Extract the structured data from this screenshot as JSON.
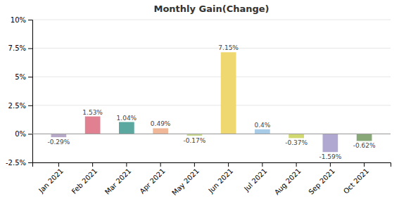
{
  "chart_data": {
    "type": "bar",
    "title": "Monthly Gain(Change)",
    "categories": [
      "Jan 2021",
      "Feb 2021",
      "Mar 2021",
      "Apr 2021",
      "May 2021",
      "Jun 2021",
      "Jul 2021",
      "Aug 2021",
      "Sep 2021",
      "Oct 2021"
    ],
    "values": [
      -0.29,
      1.53,
      1.04,
      0.49,
      -0.17,
      7.15,
      0.4,
      -0.37,
      -1.59,
      -0.62
    ],
    "value_labels": [
      "-0.29%",
      "1.53%",
      "1.04%",
      "0.49%",
      "-0.17%",
      "7.15%",
      "0.4%",
      "-0.37%",
      "-1.59%",
      "-0.62%"
    ],
    "colors": [
      "#b8a9c9",
      "#e08090",
      "#5ba8a0",
      "#f0b898",
      "#c8d890",
      "#f0d870",
      "#a8cce8",
      "#d0d870",
      "#b0a8d0",
      "#88a878"
    ],
    "ylim": [
      -2.5,
      10.0
    ],
    "yticks": [
      {
        "value": -2.5,
        "label": "-2.5%"
      },
      {
        "value": 0.0,
        "label": "0%"
      },
      {
        "value": 2.5,
        "label": "2.5%"
      },
      {
        "value": 5.0,
        "label": "5%"
      },
      {
        "value": 7.5,
        "label": "7.5%"
      },
      {
        "value": 10.0,
        "label": "10%"
      }
    ],
    "grid": true,
    "data_labels": true
  }
}
